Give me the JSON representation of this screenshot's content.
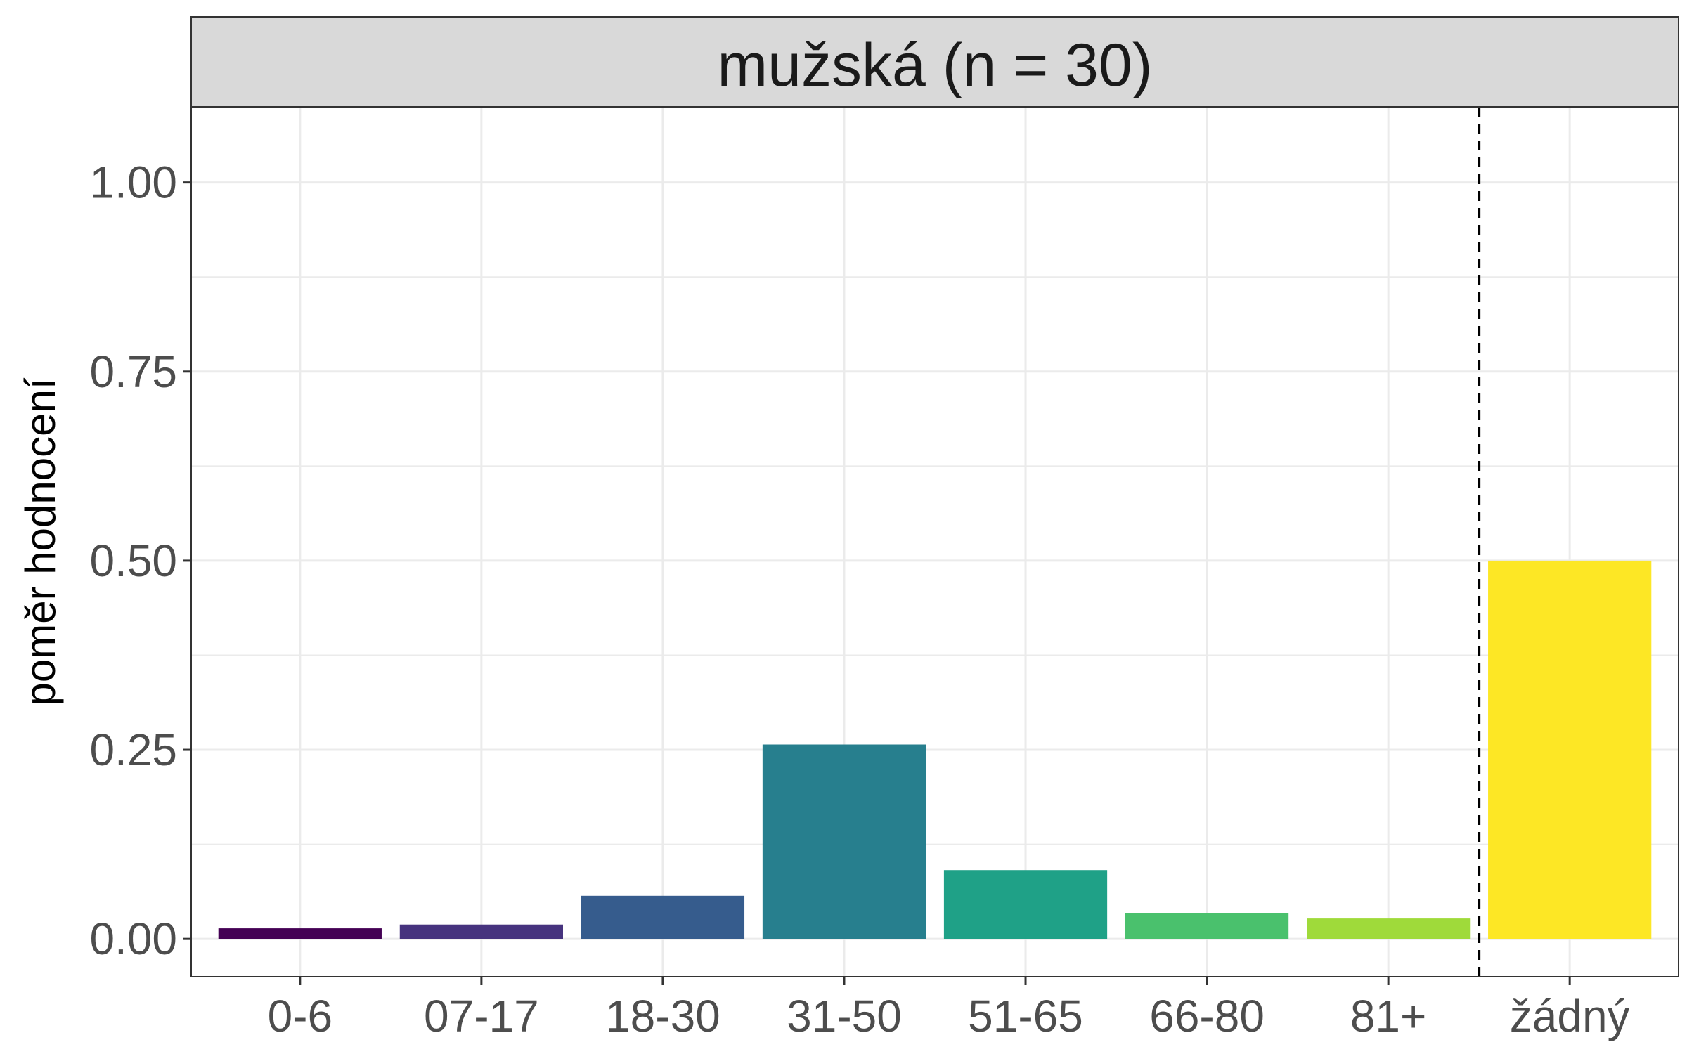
{
  "chart_data": {
    "type": "bar",
    "title": "mužská (n = 30)",
    "xlabel": "",
    "ylabel": "poměr hodnocení",
    "categories": [
      "0-6",
      "07-17",
      "18-30",
      "31-50",
      "51-65",
      "66-80",
      "81+",
      "žádný"
    ],
    "values": [
      0.014,
      0.019,
      0.057,
      0.257,
      0.091,
      0.034,
      0.027,
      0.5
    ],
    "ylim": [
      -0.05,
      1.1
    ],
    "yticks": [
      0.0,
      0.25,
      0.5,
      0.75,
      1.0
    ],
    "ytick_labels": [
      "0.00",
      "0.25",
      "0.50",
      "0.75",
      "1.00"
    ],
    "grid": true,
    "reference_line": {
      "type": "vertical",
      "style": "dashed",
      "between": [
        "81+",
        "žádný"
      ]
    },
    "colors": [
      "#440154",
      "#46337e",
      "#365c8d",
      "#277f8e",
      "#1fa187",
      "#4ac16d",
      "#9fda3a",
      "#fde725"
    ]
  }
}
